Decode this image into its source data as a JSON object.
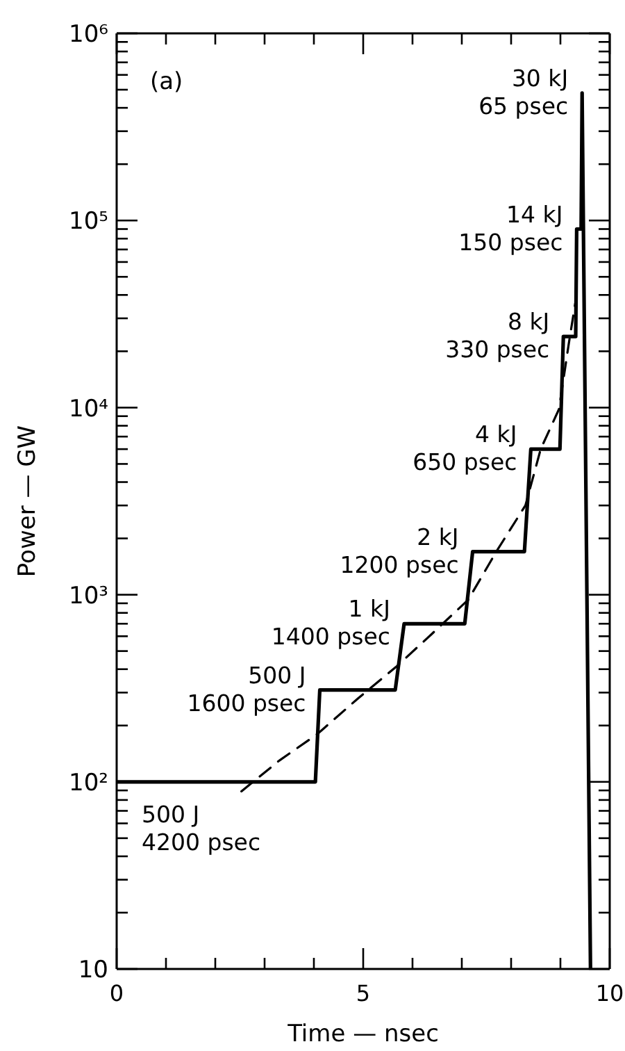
{
  "chart_data": {
    "type": "line",
    "xlabel": "Time — nsec",
    "ylabel": "Power — GW",
    "log": "y",
    "xlim": [
      0,
      10
    ],
    "ylim": [
      10,
      1000000
    ],
    "xticks": [
      0,
      {
        "value": 1,
        "label": null
      },
      {
        "value": 2,
        "label": null
      },
      {
        "value": 3,
        "label": null
      },
      {
        "value": 4,
        "label": null
      },
      5,
      {
        "value": 6,
        "label": null
      },
      {
        "value": 7,
        "label": null
      },
      {
        "value": 8,
        "label": null
      },
      {
        "value": 9,
        "label": null
      },
      10
    ],
    "yticks": [
      10,
      {
        "value": 20,
        "label": null
      },
      {
        "value": 30,
        "label": null
      },
      {
        "value": 40,
        "label": null
      },
      {
        "value": 50,
        "label": null
      },
      {
        "value": 60,
        "label": null
      },
      {
        "value": 70,
        "label": null
      },
      {
        "value": 80,
        "label": null
      },
      {
        "value": 90,
        "label": null
      },
      {
        "value": 100,
        "label": "10²"
      },
      {
        "value": 200,
        "label": null
      },
      {
        "value": 300,
        "label": null
      },
      {
        "value": 400,
        "label": null
      },
      {
        "value": 500,
        "label": null
      },
      {
        "value": 600,
        "label": null
      },
      {
        "value": 700,
        "label": null
      },
      {
        "value": 800,
        "label": null
      },
      {
        "value": 900,
        "label": null
      },
      {
        "value": 1000,
        "label": "10³"
      },
      {
        "value": 2000,
        "label": null
      },
      {
        "value": 3000,
        "label": null
      },
      {
        "value": 4000,
        "label": null
      },
      {
        "value": 5000,
        "label": null
      },
      {
        "value": 6000,
        "label": null
      },
      {
        "value": 7000,
        "label": null
      },
      {
        "value": 8000,
        "label": null
      },
      {
        "value": 9000,
        "label": null
      },
      {
        "value": 10000,
        "label": "10⁴"
      },
      {
        "value": 20000,
        "label": null
      },
      {
        "value": 30000,
        "label": null
      },
      {
        "value": 40000,
        "label": null
      },
      {
        "value": 50000,
        "label": null
      },
      {
        "value": 60000,
        "label": null
      },
      {
        "value": 70000,
        "label": null
      },
      {
        "value": 80000,
        "label": null
      },
      {
        "value": 90000,
        "label": null
      },
      {
        "value": 100000,
        "label": "10⁵"
      },
      {
        "value": 200000,
        "label": null
      },
      {
        "value": 300000,
        "label": null
      },
      {
        "value": 400000,
        "label": null
      },
      {
        "value": 500000,
        "label": null
      },
      {
        "value": 600000,
        "label": null
      },
      {
        "value": 700000,
        "label": null
      },
      {
        "value": 800000,
        "label": null
      },
      {
        "value": 900000,
        "label": null
      },
      {
        "value": 1000000,
        "label": "10⁶"
      }
    ],
    "series": [
      {
        "color": "#000000",
        "line_style": "solid",
        "x": [
          0,
          4.03,
          4.12,
          5.65,
          5.83,
          7.06,
          7.22,
          8.27,
          8.4,
          8.99,
          9.06,
          9.31,
          9.33,
          9.42,
          9.44,
          9.61
        ],
        "values": [
          100,
          100,
          310,
          310,
          700,
          700,
          1700,
          1700,
          6000,
          6000,
          24000,
          24000,
          90000,
          90000,
          480000,
          10
        ]
      },
      {
        "color": "#000000",
        "line_style": "dashed",
        "x": [
          2.53,
          3.3,
          4.07,
          4.9,
          5.66,
          6.4,
          7.13,
          7.7,
          8.29,
          8.6,
          8.97,
          9.17,
          9.3
        ],
        "values": [
          89,
          130,
          180,
          280,
          410,
          620,
          940,
          1700,
          3000,
          6000,
          9800,
          22000,
          36000
        ]
      }
    ],
    "annotations": [
      "(a)",
      {
        "text": "500 J\n4200 psec",
        "x": 0,
        "y": 100
      },
      {
        "text": "500 J\n1600 psec",
        "x": 4.12,
        "y": 310
      },
      {
        "text": "1 kJ\n1400 psec",
        "x": 5.83,
        "y": 700
      },
      {
        "text": "2 kJ\n1200 psec",
        "x": 7.22,
        "y": 1700
      },
      {
        "text": "4 kJ\n650 psec",
        "x": 8.4,
        "y": 6000
      },
      {
        "text": "8 kJ\n330 psec",
        "x": 9.06,
        "y": 24000
      },
      {
        "text": "14 kJ\n150 psec",
        "x": 9.33,
        "y": 90000
      },
      {
        "text": "30 kJ\n65 psec",
        "x": 9.44,
        "y": 480000
      }
    ]
  }
}
